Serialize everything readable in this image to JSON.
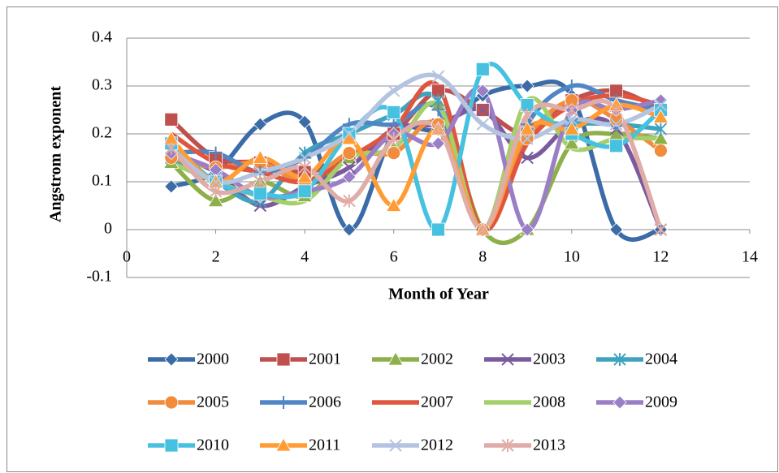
{
  "chart_data": {
    "type": "line",
    "x_label": "Month of Year",
    "y_label": "Angstrom exponent",
    "xlim": [
      0,
      14
    ],
    "xticks": [
      0,
      2,
      4,
      6,
      8,
      10,
      12,
      14
    ],
    "ylim": [
      -0.1,
      0.4
    ],
    "yticks": [
      -0.1,
      0,
      0.1,
      0.2,
      0.3,
      0.4
    ],
    "grid": true,
    "smooth": true,
    "legend": "bottom",
    "x": [
      1,
      2,
      3,
      4,
      5,
      6,
      7,
      8,
      9,
      10,
      11,
      12
    ],
    "series": [
      {
        "name": "2000",
        "color": "#3B6CA8",
        "marker": "diamond",
        "values": [
          0.09,
          0.12,
          0.22,
          0.225,
          0,
          0.2,
          0.21,
          0.28,
          0.3,
          0.28,
          0,
          0
        ]
      },
      {
        "name": "2001",
        "color": "#C0504D",
        "marker": "square",
        "values": [
          0.23,
          0.15,
          0.14,
          0.12,
          0.15,
          0.2,
          0.29,
          0.25,
          0.2,
          0.27,
          0.29,
          0.25
        ]
      },
      {
        "name": "2002",
        "color": "#8DB04A",
        "marker": "triangle",
        "values": [
          0.14,
          0.06,
          0.1,
          0.07,
          0.15,
          0.17,
          0.26,
          0,
          0,
          0.18,
          0.2,
          0.19
        ]
      },
      {
        "name": "2003",
        "color": "#7A5C9E",
        "marker": "x",
        "values": [
          0.16,
          0.12,
          0.05,
          0.09,
          0.13,
          0.21,
          0.22,
          0.25,
          0.15,
          0.22,
          0.21,
          0
        ]
      },
      {
        "name": "2004",
        "color": "#3FA3BF",
        "marker": "star",
        "values": [
          0.15,
          0.1,
          0.06,
          0.16,
          0.2,
          0.24,
          0.27,
          0,
          0.2,
          0.22,
          0.22,
          0.21
        ]
      },
      {
        "name": "2005",
        "color": "#F08C3C",
        "marker": "circle",
        "values": [
          0.15,
          0.13,
          0.14,
          0.1,
          0.16,
          0.16,
          0.22,
          0,
          0.19,
          0.27,
          0.23,
          0.165
        ]
      },
      {
        "name": "2006",
        "color": "#4F86C6",
        "marker": "plus",
        "values": [
          0.16,
          0.16,
          0.12,
          0.15,
          0.22,
          0.22,
          0.25,
          0,
          0.22,
          0.3,
          0.27,
          0.25
        ]
      },
      {
        "name": "2007",
        "color": "#E0553E",
        "marker": "none",
        "values": [
          0.2,
          0.14,
          0.12,
          0.1,
          0.15,
          0.21,
          0.3,
          0,
          0.18,
          0.26,
          0.28,
          0.26
        ]
      },
      {
        "name": "2008",
        "color": "#A5CF6A",
        "marker": "none",
        "values": [
          0.14,
          0.1,
          0.07,
          0.06,
          0.15,
          0.17,
          0.26,
          0,
          0.27,
          0.17,
          0.19,
          0.19
        ]
      },
      {
        "name": "2009",
        "color": "#9A7FC7",
        "marker": "diamond",
        "values": [
          0.16,
          0.125,
          0.07,
          0.08,
          0.11,
          0.2,
          0.18,
          0.29,
          0,
          0.25,
          0.25,
          0.27
        ]
      },
      {
        "name": "2010",
        "color": "#46C1E0",
        "marker": "square",
        "values": [
          0.18,
          0.1,
          0.075,
          0.08,
          0.2,
          0.245,
          0,
          0.335,
          0.26,
          0.2,
          0.175,
          0.25
        ]
      },
      {
        "name": "2011",
        "color": "#FF9C33",
        "marker": "triangle",
        "values": [
          0.19,
          0.1,
          0.15,
          0.11,
          0.19,
          0.05,
          0.21,
          0,
          0.21,
          0.21,
          0.26,
          0.235
        ]
      },
      {
        "name": "2012",
        "color": "#B4C4E0",
        "marker": "x",
        "values": [
          0.17,
          0.1,
          0.12,
          0.15,
          0.2,
          0.29,
          0.32,
          0.22,
          0.19,
          0.23,
          0.22,
          0.26
        ]
      },
      {
        "name": "2013",
        "color": "#E0ACA8",
        "marker": "star",
        "values": [
          0.17,
          0.08,
          0.1,
          0.13,
          0.06,
          0.19,
          0.21,
          0,
          0.24,
          0.25,
          0.25,
          0
        ]
      }
    ]
  }
}
